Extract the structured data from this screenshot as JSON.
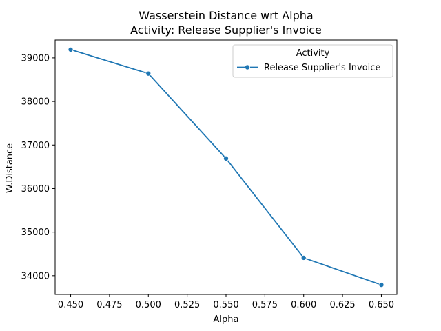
{
  "chart_data": {
    "type": "line",
    "title": "Wasserstein Distance wrt Alpha",
    "subtitle": "Activity: Release Supplier's Invoice",
    "xlabel": "Alpha",
    "ylabel": "W.Distance",
    "x": [
      0.45,
      0.5,
      0.55,
      0.6,
      0.65
    ],
    "series": [
      {
        "name": "Release Supplier's Invoice",
        "values": [
          39190,
          38640,
          36690,
          34410,
          33790
        ],
        "color": "#1f77b4",
        "marker": "circle"
      }
    ],
    "xlim": [
      0.44,
      0.66
    ],
    "ylim": [
      33570,
      39410
    ],
    "xticks": [
      0.45,
      0.475,
      0.5,
      0.525,
      0.55,
      0.575,
      0.6,
      0.625,
      0.65
    ],
    "xtick_labels": [
      "0.450",
      "0.475",
      "0.500",
      "0.525",
      "0.550",
      "0.575",
      "0.600",
      "0.625",
      "0.650"
    ],
    "yticks": [
      34000,
      35000,
      36000,
      37000,
      38000,
      39000
    ],
    "ytick_labels": [
      "34000",
      "35000",
      "36000",
      "37000",
      "38000",
      "39000"
    ],
    "grid": false,
    "legend": {
      "title": "Activity",
      "placement": "top-right"
    }
  }
}
